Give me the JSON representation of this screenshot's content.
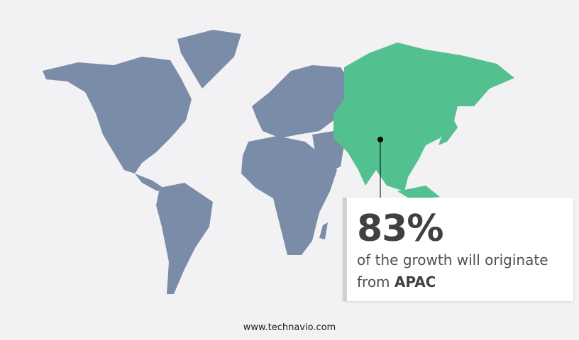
{
  "colors": {
    "background": "#f2f2f4",
    "land": "#7a8ca8",
    "highlight": "#52c08f",
    "marker": "#000000"
  },
  "highlight_region": "APAC",
  "callout": {
    "value": "83%",
    "text": "of the growth will originate",
    "prefix": "from",
    "region": "APAC"
  },
  "footer": {
    "url": "www.technavio.com"
  }
}
